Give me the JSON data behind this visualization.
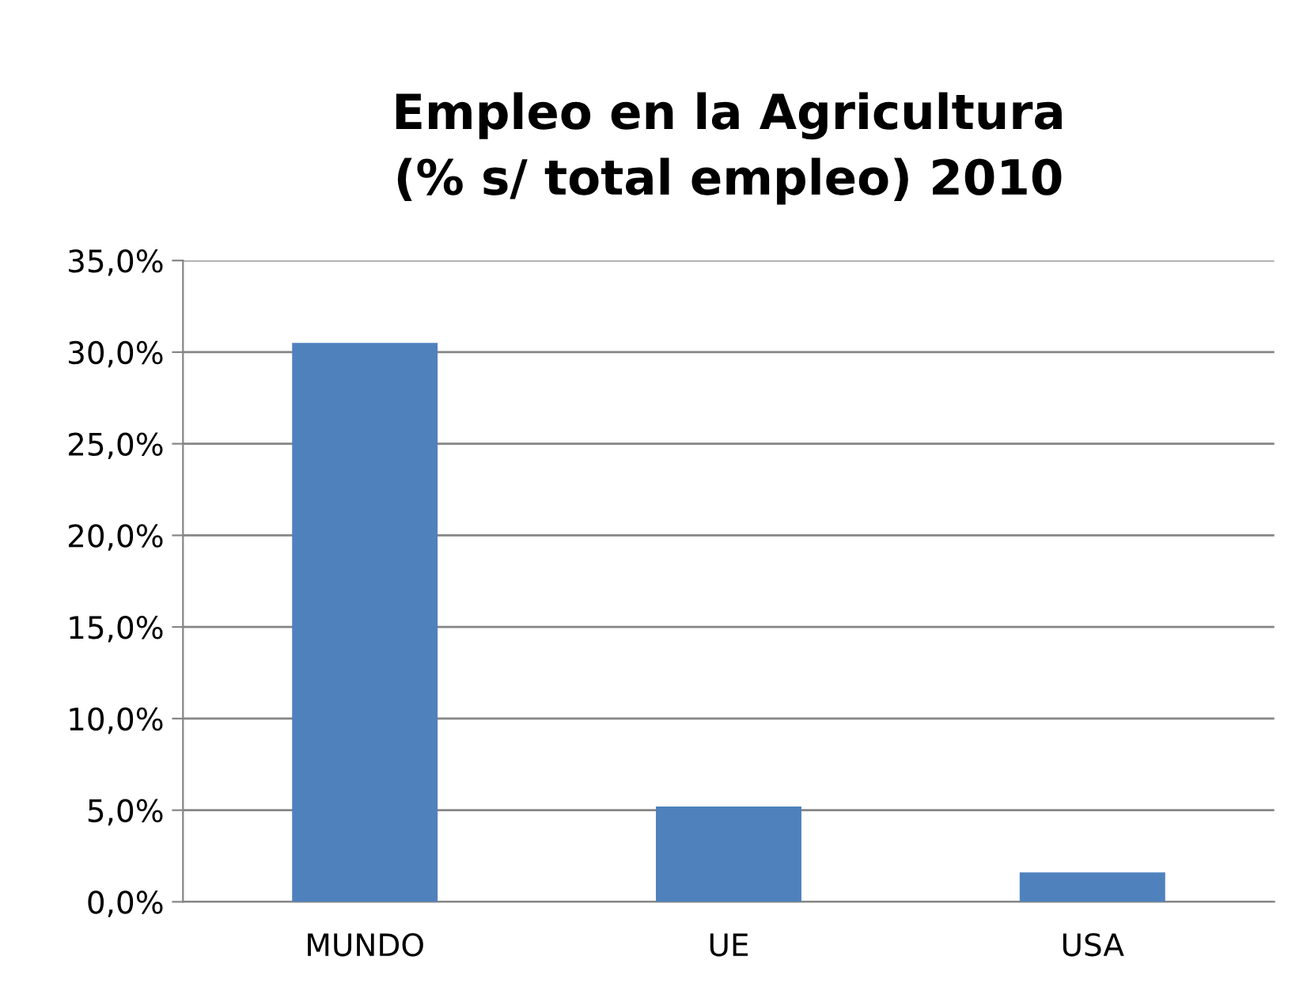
{
  "chart_data": {
    "type": "bar",
    "title": "Empleo en la Agricultura\n(% s/ total empleo) 2010",
    "categories": [
      "MUNDO",
      "UE",
      "USA"
    ],
    "series": [
      {
        "color": "#4f81bd",
        "values": [
          30.5,
          5.2,
          1.6
        ]
      }
    ],
    "ylim": [
      0,
      35
    ],
    "yticks": [
      {
        "value": 0,
        "label": "0,0%"
      },
      {
        "value": 5,
        "label": "5,0%"
      },
      {
        "value": 10,
        "label": "10,0%"
      },
      {
        "value": 15,
        "label": "15,0%"
      },
      {
        "value": 20,
        "label": "20,0%"
      },
      {
        "value": 25,
        "label": "25,0%"
      },
      {
        "value": 30,
        "label": "30,0%"
      },
      {
        "value": 35,
        "label": "35,0%"
      }
    ],
    "grid": "y",
    "legend": false
  }
}
